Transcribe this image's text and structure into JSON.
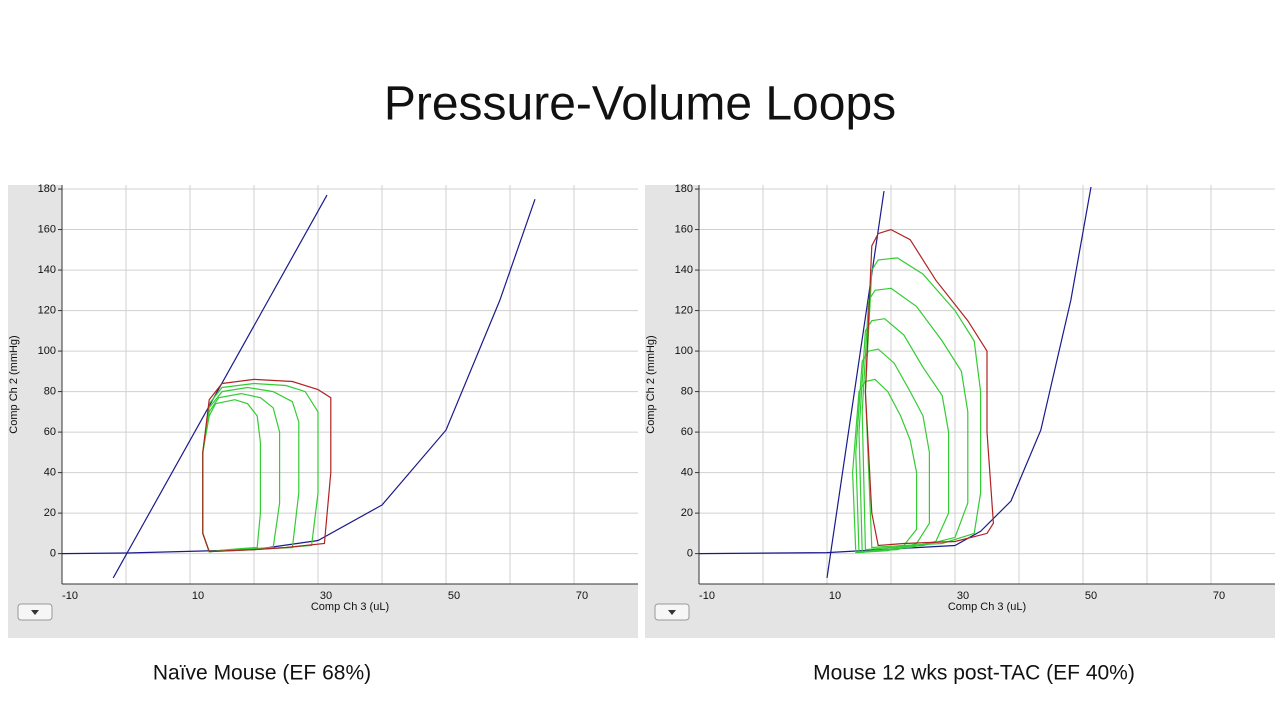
{
  "title": "Pressure-Volume Loops",
  "chart_data": [
    {
      "type": "line",
      "caption": "Naïve Mouse (EF 68%)",
      "xlabel": "Comp Ch 3 (uL)",
      "ylabel": "Comp Ch 2 (mmHg)",
      "xlim": [
        -10,
        80
      ],
      "ylim": [
        -15,
        182
      ],
      "xticks": [
        -10,
        10,
        30,
        50,
        70
      ],
      "xminor": [
        0,
        20,
        40,
        60
      ],
      "yticks": [
        0,
        20,
        40,
        60,
        80,
        100,
        120,
        140,
        160,
        180
      ],
      "grid": true,
      "series": [
        {
          "color": "#1a1a8c",
          "x": [
            -2,
            31.4
          ],
          "values": [
            -12,
            177
          ]
        },
        {
          "color": "#1a1a8c",
          "x": [
            -10,
            0,
            20,
            30,
            40,
            50,
            58.4,
            63.9
          ],
          "values": [
            0,
            0.3,
            2,
            6.5,
            24,
            61,
            125,
            175
          ]
        },
        {
          "color": "#33cc33",
          "closed": true,
          "x": [
            13,
            15,
            20,
            25,
            28,
            30,
            30,
            29,
            25,
            20,
            13,
            12,
            12
          ],
          "values": [
            74,
            82,
            84,
            83,
            80,
            70,
            30,
            4,
            3,
            2,
            1,
            10,
            50
          ]
        },
        {
          "color": "#33cc33",
          "closed": true,
          "x": [
            13,
            15,
            19,
            23,
            26,
            27,
            27,
            26,
            22,
            18,
            13,
            12,
            12
          ],
          "values": [
            72,
            80,
            82,
            80,
            75,
            65,
            30,
            3,
            2.5,
            2,
            1,
            10,
            50
          ]
        },
        {
          "color": "#33cc33",
          "closed": true,
          "x": [
            13,
            14.5,
            18,
            21,
            23,
            24,
            24,
            23,
            20,
            17,
            13,
            12,
            12
          ],
          "values": [
            70,
            77,
            79,
            77,
            72,
            60,
            25,
            3,
            2.5,
            2,
            1,
            10,
            50
          ]
        },
        {
          "color": "#33cc33",
          "closed": true,
          "x": [
            13,
            14,
            17,
            19,
            20.5,
            21,
            21,
            20.5,
            18,
            16,
            13,
            12,
            12
          ],
          "values": [
            68,
            74,
            76,
            74,
            68,
            55,
            20,
            3,
            2.5,
            2,
            1,
            10,
            50
          ]
        },
        {
          "color": "#b22222",
          "closed": true,
          "x": [
            13,
            15,
            20,
            26,
            30,
            32,
            32,
            31,
            25,
            20,
            13,
            12,
            12
          ],
          "values": [
            76,
            84,
            86,
            85,
            81,
            77,
            40,
            5,
            3,
            2,
            1,
            10,
            50
          ]
        }
      ]
    },
    {
      "type": "line",
      "caption": "Mouse 12 wks post-TAC (EF 40%)",
      "xlabel": "Comp Ch 3 (uL)",
      "ylabel": "Comp Ch 2 (mmHg)",
      "xlim": [
        -10,
        80
      ],
      "ylim": [
        -15,
        182
      ],
      "xticks": [
        -10,
        10,
        30,
        50,
        70
      ],
      "xminor": [
        0,
        20,
        40,
        60
      ],
      "yticks": [
        0,
        20,
        40,
        60,
        80,
        100,
        120,
        140,
        160,
        180
      ],
      "grid": true,
      "series": [
        {
          "color": "#1a1a8c",
          "x": [
            10,
            18.9
          ],
          "values": [
            -12,
            179
          ]
        },
        {
          "color": "#1a1a8c",
          "x": [
            -10,
            10,
            30,
            34,
            38.75,
            43.4,
            48.1,
            51.25
          ],
          "values": [
            0,
            0.5,
            4,
            11,
            26,
            61,
            125,
            181
          ]
        },
        {
          "color": "#33cc33",
          "closed": true,
          "x": [
            17,
            18,
            21,
            25,
            30,
            33,
            34,
            34,
            33,
            28,
            22,
            17,
            16
          ],
          "values": [
            140,
            145,
            146,
            138,
            120,
            105,
            80,
            30,
            10,
            5,
            4,
            3,
            80
          ]
        },
        {
          "color": "#33cc33",
          "closed": true,
          "x": [
            16.5,
            17.5,
            20,
            24,
            28,
            31,
            32,
            32,
            30,
            25,
            20,
            16,
            15.5
          ],
          "values": [
            125,
            130,
            131,
            122,
            105,
            90,
            70,
            25,
            8,
            4,
            3,
            2,
            70
          ]
        },
        {
          "color": "#33cc33",
          "closed": true,
          "x": [
            16,
            17,
            19,
            22,
            25,
            28,
            29,
            29,
            27,
            23,
            19,
            15.5,
            15
          ],
          "values": [
            110,
            115,
            116,
            108,
            92,
            78,
            60,
            20,
            6,
            3,
            2,
            1,
            60
          ]
        },
        {
          "color": "#33cc33",
          "closed": true,
          "x": [
            15.5,
            16.5,
            18,
            20.5,
            23,
            25,
            26,
            26,
            24,
            21,
            18,
            15,
            14.5
          ],
          "values": [
            95,
            100,
            101,
            94,
            80,
            68,
            50,
            15,
            5,
            2,
            1.5,
            0.5,
            50
          ]
        },
        {
          "color": "#33cc33",
          "closed": true,
          "x": [
            15,
            16,
            17.5,
            19.5,
            21.5,
            23,
            24,
            24,
            22,
            19.5,
            17,
            14.5,
            14
          ],
          "values": [
            80,
            85,
            86,
            80,
            68,
            56,
            40,
            12,
            4,
            1.5,
            1,
            0.5,
            40
          ]
        },
        {
          "color": "#b22222",
          "closed": true,
          "x": [
            17,
            18,
            20,
            23,
            27,
            32,
            35,
            35,
            36,
            35,
            30,
            22,
            18,
            17,
            16
          ],
          "values": [
            152,
            158,
            160,
            155,
            135,
            115,
            100,
            60,
            15,
            10,
            6,
            5,
            4,
            20,
            80
          ]
        }
      ]
    }
  ]
}
